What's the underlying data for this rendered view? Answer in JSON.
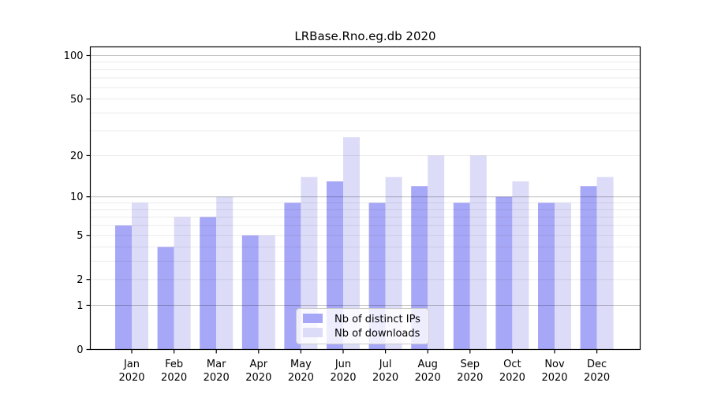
{
  "chart_data": {
    "type": "bar",
    "title": "LRBase.Rno.eg.db 2020",
    "categories": [
      "Jan",
      "Feb",
      "Mar",
      "Apr",
      "May",
      "Jun",
      "Jul",
      "Aug",
      "Sep",
      "Oct",
      "Nov",
      "Dec"
    ],
    "category_year_label": "2020",
    "series": [
      {
        "name": "Nb of distinct IPs",
        "color": "#a7a7f7",
        "values": [
          6,
          4,
          7,
          5,
          9,
          13,
          9,
          12,
          9,
          10,
          9,
          12
        ]
      },
      {
        "name": "Nb of downloads",
        "color": "#dcdcf8",
        "values": [
          9,
          7,
          10,
          5,
          14,
          27,
          14,
          20,
          20,
          13,
          9,
          14
        ]
      }
    ],
    "y_axis": {
      "scale": "log1p",
      "ticks": [
        0,
        1,
        2,
        5,
        10,
        20,
        50,
        100
      ],
      "major_gridlines": [
        1,
        10,
        100
      ],
      "minor_gridlines": [
        2,
        3,
        4,
        5,
        6,
        7,
        8,
        9,
        20,
        30,
        40,
        50,
        60,
        70,
        80,
        90
      ],
      "range": [
        0,
        100
      ]
    },
    "legend": {
      "position": "bottom-center-inside"
    },
    "colors": {
      "major_grid": "rgba(0,0,0,0.24)",
      "minor_grid": "rgba(0,0,0,0.08)",
      "spine": "#000000",
      "text": "#000000"
    }
  }
}
